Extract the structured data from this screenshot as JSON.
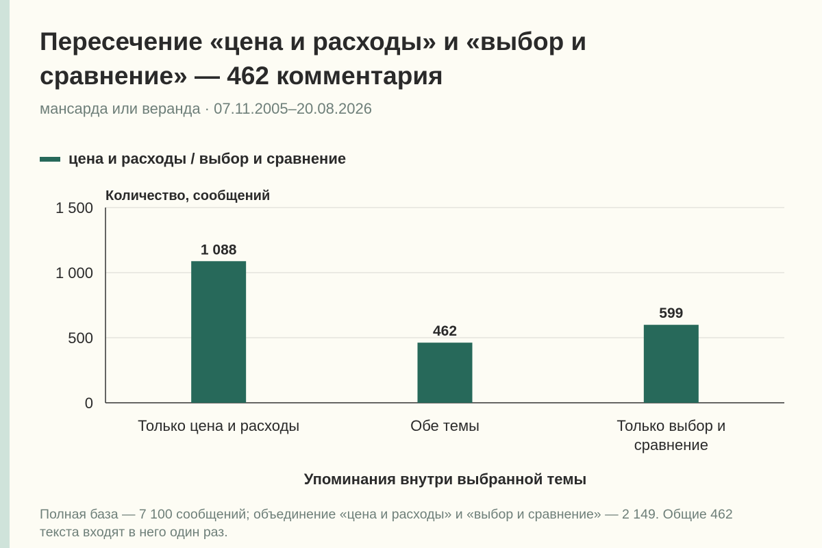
{
  "title": "Пересечение «цена и расходы» и «выбор и сравнение» — 462 комментария",
  "subtitle": "мансарда или веранда · 07.11.2005–20.08.2026",
  "footnote": "Полная база — 7 100 сообщений; объединение «цена и расходы» и «выбор и сравнение» — 2 149. Общие 462 текста входят в него один раз.",
  "colors": {
    "bar": "#27695a",
    "grid": "#d9d9d2",
    "axis": "#333333"
  },
  "chart_data": {
    "type": "bar",
    "legend": "цена и расходы / выбор и сравнение",
    "legend_position": "top-left",
    "ylabel": "Количество, сообщений",
    "xlabel": "Упоминания внутри выбранной темы",
    "ylim": [
      0,
      1500
    ],
    "yticks": [
      0,
      500,
      1000,
      1500
    ],
    "ytick_labels": [
      "0",
      "500",
      "1 000",
      "1 500"
    ],
    "grid": true,
    "categories": [
      "Только цена и расходы",
      "Обе темы",
      "Только выбор и сравнение"
    ],
    "values": [
      1088,
      462,
      599
    ],
    "value_labels": [
      "1 088",
      "462",
      "599"
    ]
  }
}
